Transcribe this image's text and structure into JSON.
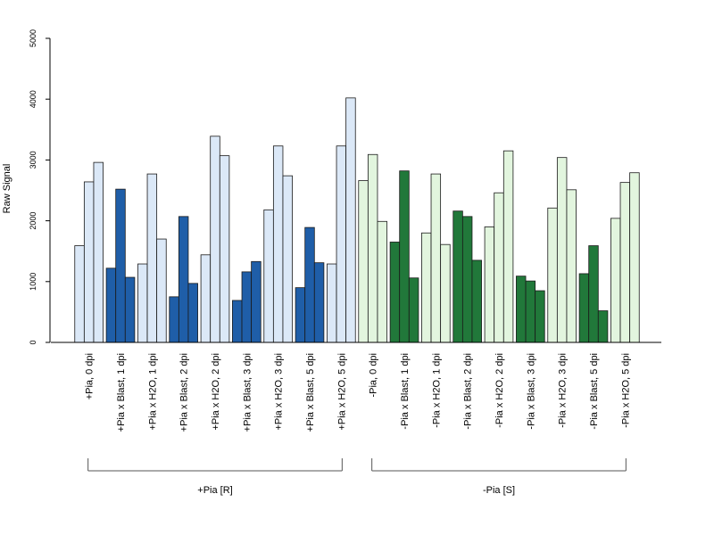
{
  "chart_data": {
    "type": "bar",
    "ylabel": "Raw Signal",
    "ylim": [
      0,
      5000
    ],
    "yticks": [
      0,
      1000,
      2000,
      3000,
      4000,
      5000
    ],
    "bars_per_category": 3,
    "categories": [
      {
        "label": "+Pia, 0 dpi",
        "values": [
          1590,
          2640,
          2960
        ],
        "color": "#dbe8f7"
      },
      {
        "label": "+Pia x Blast, 1 dpi",
        "values": [
          1220,
          2520,
          1070
        ],
        "color": "#1f5ea8"
      },
      {
        "label": "+Pia x H2O, 1 dpi",
        "values": [
          1290,
          2770,
          1700
        ],
        "color": "#dbe8f7"
      },
      {
        "label": "+Pia x Blast, 2 dpi",
        "values": [
          750,
          2070,
          970
        ],
        "color": "#1f5ea8"
      },
      {
        "label": "+Pia x H2O, 2 dpi",
        "values": [
          1440,
          3390,
          3070
        ],
        "color": "#dbe8f7"
      },
      {
        "label": "+Pia x Blast, 3 dpi",
        "values": [
          690,
          1160,
          1330
        ],
        "color": "#1f5ea8"
      },
      {
        "label": "+Pia x H2O, 3 dpi",
        "values": [
          2180,
          3230,
          2740
        ],
        "color": "#dbe8f7"
      },
      {
        "label": "+Pia x Blast, 5 dpi",
        "values": [
          900,
          1890,
          1310
        ],
        "color": "#1f5ea8"
      },
      {
        "label": "+Pia x H2O, 5 dpi",
        "values": [
          1290,
          3230,
          4020
        ],
        "color": "#dbe8f7"
      },
      {
        "label": "-Pia, 0 dpi",
        "values": [
          2660,
          3090,
          1990
        ],
        "color": "#e2f5de"
      },
      {
        "label": "-Pia x Blast, 1 dpi",
        "values": [
          1650,
          2820,
          1060
        ],
        "color": "#21783a"
      },
      {
        "label": "-Pia x H2O, 1 dpi",
        "values": [
          1800,
          2770,
          1610
        ],
        "color": "#e2f5de"
      },
      {
        "label": "-Pia x Blast, 2 dpi",
        "values": [
          2160,
          2070,
          1350
        ],
        "color": "#21783a"
      },
      {
        "label": "-Pia x H2O, 2 dpi",
        "values": [
          1900,
          2460,
          3150
        ],
        "color": "#e2f5de"
      },
      {
        "label": "-Pia x Blast, 3 dpi",
        "values": [
          1090,
          1010,
          850
        ],
        "color": "#21783a"
      },
      {
        "label": "-Pia x H2O, 3 dpi",
        "values": [
          2210,
          3040,
          2510
        ],
        "color": "#e2f5de"
      },
      {
        "label": "-Pia x Blast, 5 dpi",
        "values": [
          1130,
          1590,
          520
        ],
        "color": "#21783a"
      },
      {
        "label": "-Pia x H2O, 5 dpi",
        "values": [
          2040,
          2630,
          2790
        ],
        "color": "#e2f5de"
      }
    ],
    "groups": [
      {
        "label": "+Pia [R]",
        "from": 0,
        "to": 8
      },
      {
        "label": "-Pia [S]",
        "from": 9,
        "to": 17
      }
    ],
    "grid": false,
    "legend": "none"
  }
}
